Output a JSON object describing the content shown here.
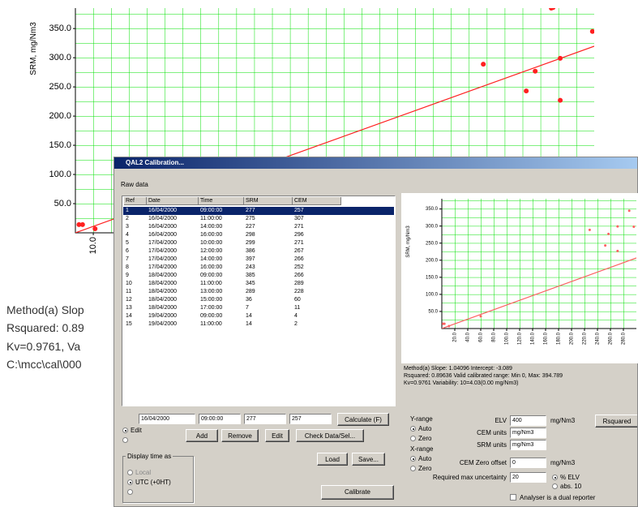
{
  "background_chart": {
    "type": "scatter",
    "y_label": "SRM, mg/Nm3",
    "ylim": [
      0,
      385
    ],
    "yticks": [
      {
        "value": 50,
        "label": "50.0"
      },
      {
        "value": 100,
        "label": "100.0"
      },
      {
        "value": 150,
        "label": "150.0"
      },
      {
        "value": 200,
        "label": "200.0"
      },
      {
        "value": 250,
        "label": "250.0"
      },
      {
        "value": 300,
        "label": "300.0"
      },
      {
        "value": 350,
        "label": "350.0"
      }
    ],
    "xlim": [
      0,
      290
    ],
    "xticks": [
      {
        "value": 10,
        "label": "10.0"
      }
    ],
    "grid": true,
    "color": "#ff2020",
    "grid_color": "#00e000"
  },
  "background_text": [
    "Method(a) Slop",
    "Rsquared: 0.89",
    "Kv=0.9761, Va",
    "C:\\mcc\\cal\\000"
  ],
  "dialog": {
    "title": "QAL2 Calibration...",
    "raw_data_label": "Raw data",
    "table": {
      "columns": [
        "Ref",
        "Date",
        "Time",
        "SRM",
        "CEM"
      ],
      "rows": [
        [
          1,
          "16/04/2000",
          "09:00:00",
          277,
          257
        ],
        [
          2,
          "16/04/2000",
          "11:00:00",
          275,
          307
        ],
        [
          3,
          "16/04/2000",
          "14:00:00",
          227,
          271
        ],
        [
          4,
          "16/04/2000",
          "16:00:00",
          298,
          296
        ],
        [
          5,
          "17/04/2000",
          "10:00:00",
          299,
          271
        ],
        [
          6,
          "17/04/2000",
          "12:00:00",
          386,
          267
        ],
        [
          7,
          "17/04/2000",
          "14:00:00",
          397,
          266
        ],
        [
          8,
          "17/04/2000",
          "16:00:00",
          243,
          252
        ],
        [
          9,
          "18/04/2000",
          "09:00:00",
          385,
          266
        ],
        [
          10,
          "18/04/2000",
          "11:00:00",
          345,
          289
        ],
        [
          11,
          "18/04/2000",
          "13:00:00",
          289,
          228
        ],
        [
          12,
          "18/04/2000",
          "15:00:00",
          36,
          60
        ],
        [
          13,
          "18/04/2000",
          "17:00:00",
          7,
          11
        ],
        [
          14,
          "19/04/2000",
          "09:00:00",
          14,
          4
        ],
        [
          15,
          "19/04/2000",
          "11:00:00",
          14,
          2
        ]
      ]
    },
    "edit_fields": [
      "16/04/2000",
      "09:00:00",
      "277",
      "257"
    ],
    "calculate_button": "Calculate (F)",
    "edit_radio": "Edit",
    "buttons": [
      "Add",
      "Remove",
      "Edit",
      "Check Data/Sel..."
    ],
    "display_time": {
      "title": "Display time as",
      "options": [
        "Local",
        "UTC (+0HT)"
      ]
    },
    "file_buttons": [
      "Load",
      "Save..."
    ],
    "calibrate_button": "Calibrate",
    "results": [
      "Method(a) Slope: 1.04096 Intercept: -3.089",
      "Rsquared: 0.89636 Valid calibrated range: Min 0, Max: 394.789",
      "Kv=0.9761 Variability: 10=4.03(0.00 mg/Nm3)"
    ],
    "y_range": {
      "label": "Y-range",
      "options": [
        "Auto",
        "Zero"
      ]
    },
    "x_range": {
      "label": "X-range",
      "options": [
        "Auto",
        "Zero"
      ]
    },
    "settings": [
      {
        "label": "ELV",
        "value": "400",
        "unit": "mg/Nm3"
      },
      {
        "label": "CEM units",
        "value": "mg/Nm3"
      },
      {
        "label": "SRM units",
        "value": "mg/Nm3"
      },
      {
        "label": "CEM Zero offset",
        "value": "0",
        "unit": "mg/Nm3"
      },
      {
        "label": "Required max uncertainty",
        "value": "20"
      }
    ],
    "uncertainty_options": [
      "% ELV",
      "abs. 10"
    ],
    "dual_reporter": "Analyser is a dual reporter",
    "rsquared_button": "Rsquared",
    "chart": {
      "type": "scatter",
      "y_label": "SRM, mg/Nm3",
      "ylim": [
        0,
        380
      ],
      "yticks": [
        {
          "value": 50,
          "label": "50.0"
        },
        {
          "value": 100,
          "label": "100.0"
        },
        {
          "value": 150,
          "label": "150.0"
        },
        {
          "value": 200,
          "label": "200.0"
        },
        {
          "value": 250,
          "label": "250.0"
        },
        {
          "value": 300,
          "label": "300.0"
        },
        {
          "value": 350,
          "label": "350.0"
        }
      ],
      "xlim": [
        0,
        300
      ],
      "xticks": [
        {
          "value": 20,
          "label": "20.0"
        },
        {
          "value": 40,
          "label": "40.0"
        },
        {
          "value": 60,
          "label": "60.0"
        },
        {
          "value": 80,
          "label": "80.0"
        },
        {
          "value": 100,
          "label": "100.0"
        },
        {
          "value": 120,
          "label": "120.0"
        },
        {
          "value": 140,
          "label": "140.0"
        },
        {
          "value": 160,
          "label": "160.0"
        },
        {
          "value": 180,
          "label": "180.0"
        },
        {
          "value": 200,
          "label": "200.0"
        },
        {
          "value": 220,
          "label": "220.0"
        },
        {
          "value": 240,
          "label": "240.0"
        },
        {
          "value": 260,
          "label": "260.0"
        },
        {
          "value": 280,
          "label": "280.0"
        }
      ],
      "grid": true,
      "color": "#ff6060",
      "grid_color": "#00e000"
    }
  }
}
